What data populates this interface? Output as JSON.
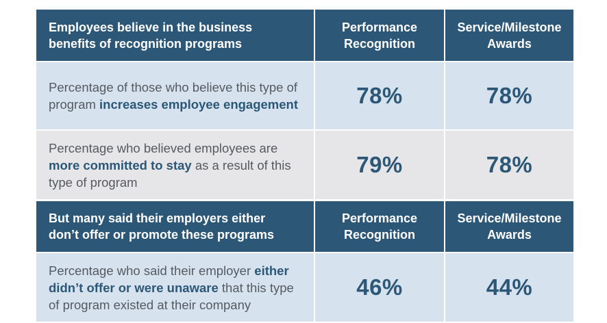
{
  "section1": {
    "header": {
      "title": "Employees believe in the business benefits of recognition programs",
      "col1": "Performance Recognition",
      "col2": "Service/Milestone Awards"
    },
    "rows": [
      {
        "pre": "Percentage of those who believe this type of program ",
        "highlight": "increases employee engagement",
        "post": "",
        "performance": "78%",
        "service": "78%"
      },
      {
        "pre": "Percentage who believed employees are ",
        "highlight": "more committed to stay",
        "post": " as a result of this type of program",
        "performance": "79%",
        "service": "78%"
      }
    ]
  },
  "section2": {
    "header": {
      "title": "But many said their employers either don’t offer or promote these programs",
      "col1": "Performance Recognition",
      "col2": "Service/Milestone Awards"
    },
    "rows": [
      {
        "pre": "Percentage who said their employer ",
        "highlight": "either didn’t offer or were unaware",
        "post": " that this type of program existed at their company",
        "performance": "46%",
        "service": "44%"
      }
    ]
  },
  "colors": {
    "header_bg": "#2c5777",
    "row_blue": "#d6e3ef",
    "row_gray": "#e6e6e8",
    "accent_text": "#2c5777"
  }
}
